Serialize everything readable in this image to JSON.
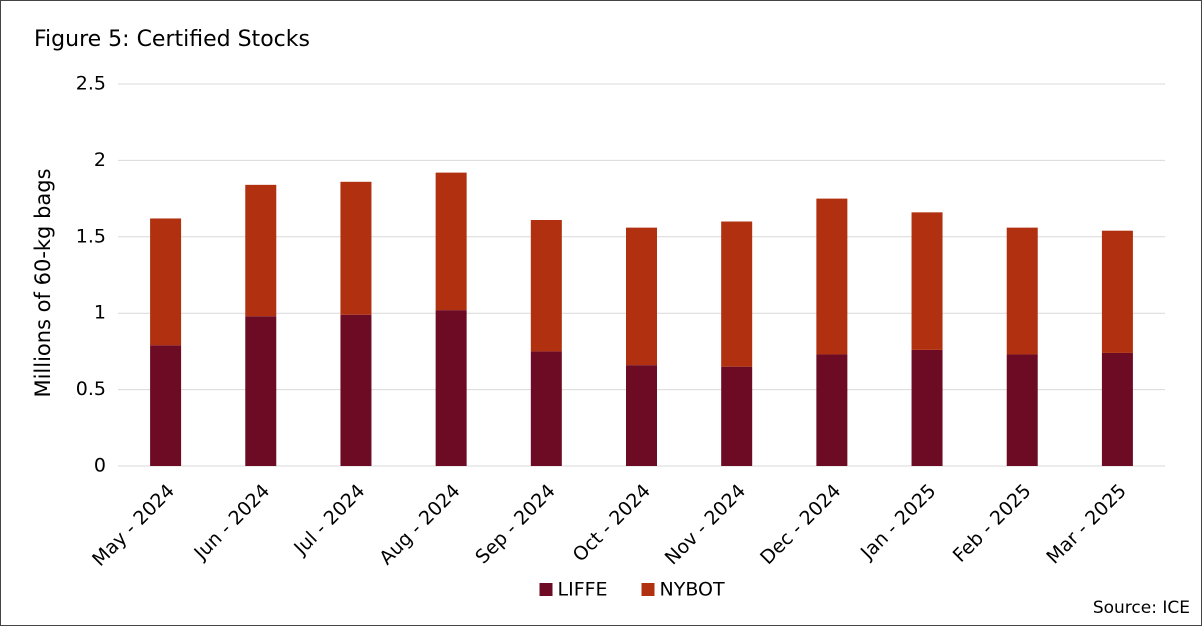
{
  "chart_data": {
    "type": "stacked_bar",
    "title": "Figure 5: Certified Stocks",
    "y_label": "Millions of 60-kg bags",
    "source": "Source: ICE",
    "categories": [
      "May - 2024",
      "Jun - 2024",
      "Jul - 2024",
      "Aug - 2024",
      "Sep - 2024",
      "Oct - 2024",
      "Nov - 2024",
      "Dec - 2024",
      "Jan - 2025",
      "Feb - 2025",
      "Mar - 2025"
    ],
    "series": [
      {
        "name": "LIFFE",
        "color": "#6d0b24",
        "values": [
          0.79,
          0.98,
          0.99,
          1.02,
          0.75,
          0.66,
          0.65,
          0.73,
          0.76,
          0.73,
          0.74
        ]
      },
      {
        "name": "NYBOT",
        "color": "#b0300f",
        "values": [
          0.83,
          0.86,
          0.87,
          0.9,
          0.86,
          0.9,
          0.95,
          1.02,
          0.9,
          0.83,
          0.8
        ]
      }
    ],
    "ylim": [
      0,
      2.5
    ],
    "yticks": [
      0,
      0.5,
      1,
      1.5,
      2,
      2.5
    ],
    "grid": true,
    "legend": "bottom"
  }
}
